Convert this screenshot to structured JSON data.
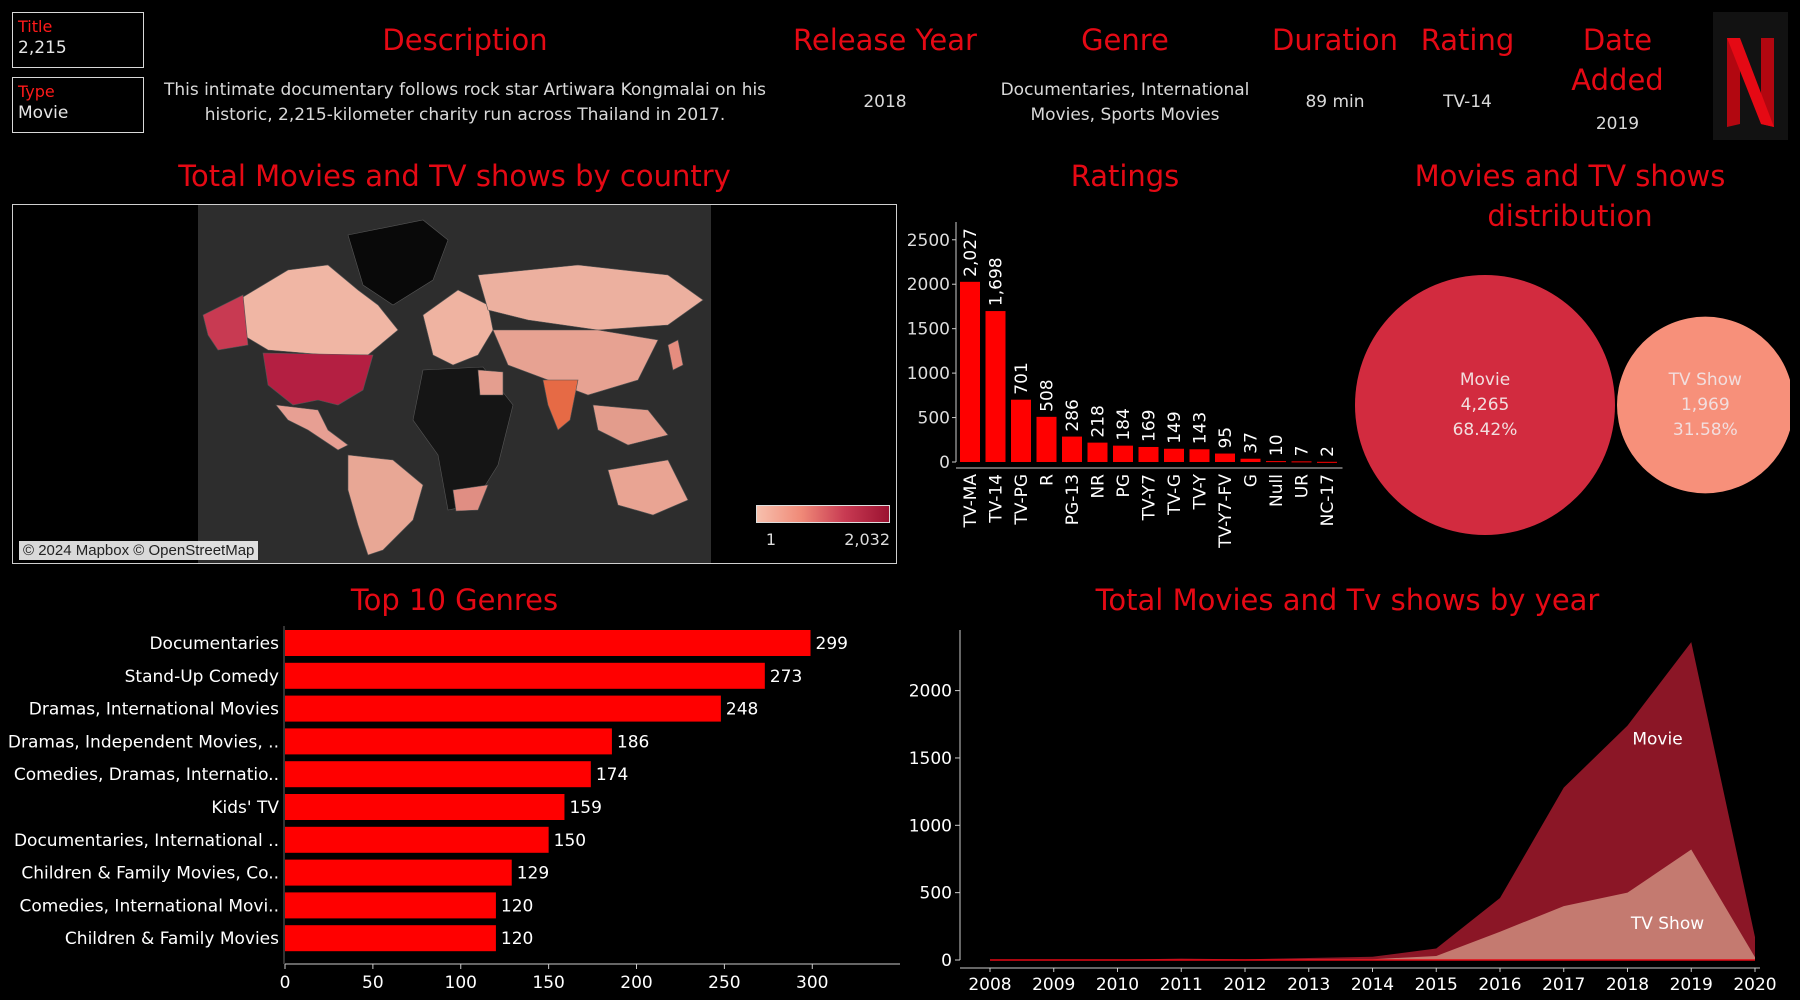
{
  "filters": {
    "title_label": "Title",
    "title_value": "2,215",
    "type_label": "Type",
    "type_value": "Movie"
  },
  "detail": {
    "description_header": "Description",
    "description": "This intimate documentary follows rock star Artiwara Kongmalai on his historic, 2,215-kilometer charity run across Thailand in 2017.",
    "release_year_header": "Release Year",
    "release_year": "2018",
    "genre_header": "Genre",
    "genre": "Documentaries, International Movies, Sports Movies",
    "duration_header": "Duration",
    "duration": "89 min",
    "rating_header": "Rating",
    "rating": "TV-14",
    "date_added_header": "Date Added",
    "date_added": "2019"
  },
  "logo": {
    "icon": "netflix-n-logo",
    "color": "#e50914"
  },
  "map": {
    "title": "Total Movies and TV shows by country",
    "attribution": "© 2024 Mapbox © OpenStreetMap",
    "legend_min": "1",
    "legend_max": "2,032",
    "color_low": "#f7c0ad",
    "color_high": "#9b1231"
  },
  "colors": {
    "accent": "#e50914",
    "bar": "#ff0000",
    "movie": "#d22b3f",
    "tvshow": "#f7907a",
    "area_movie": "#8b1626",
    "area_tv": "#c47a70"
  },
  "chart_data": [
    {
      "type": "bar",
      "title": "Ratings",
      "categories": [
        "TV-MA",
        "TV-14",
        "TV-PG",
        "R",
        "PG-13",
        "NR",
        "PG",
        "TV-Y7",
        "TV-G",
        "TV-Y",
        "TV-Y7-FV",
        "G",
        "Null",
        "UR",
        "NC-17"
      ],
      "values": [
        2027,
        1698,
        701,
        508,
        286,
        218,
        184,
        169,
        149,
        143,
        95,
        37,
        10,
        7,
        2
      ],
      "value_labels": [
        "2,027",
        "1,698",
        "701",
        "508",
        "286",
        "218",
        "184",
        "169",
        "149",
        "143",
        "95",
        "37",
        "10",
        "7",
        "2"
      ],
      "ylim": [
        0,
        2700
      ],
      "yticks": [
        0,
        500,
        1000,
        1500,
        2000,
        2500
      ]
    },
    {
      "type": "pie",
      "title": "Movies and TV shows distribution",
      "categories": [
        "Movie",
        "TV Show"
      ],
      "values": [
        4265,
        1969
      ],
      "value_labels": [
        "4,265",
        "1,969"
      ],
      "percent_labels": [
        "68.42%",
        "31.58%"
      ]
    },
    {
      "type": "bar",
      "title": "Top 10 Genres",
      "orientation": "horizontal",
      "categories": [
        "Documentaries",
        "Stand-Up Comedy",
        "Dramas, International Movies",
        "Dramas, Independent Movies, ..",
        "Comedies, Dramas, Internatio..",
        "Kids' TV",
        "Documentaries, International ..",
        "Children & Family Movies, Co..",
        "Comedies, International Movi..",
        "Children & Family Movies"
      ],
      "values": [
        299,
        273,
        248,
        186,
        174,
        159,
        150,
        129,
        120,
        120
      ],
      "xlim": [
        0,
        330
      ],
      "xticks": [
        0,
        50,
        100,
        150,
        200,
        250,
        300
      ]
    },
    {
      "type": "area",
      "title": "Total Movies and Tv shows by year",
      "x": [
        "2008",
        "2009",
        "2010",
        "2011",
        "2012",
        "2013",
        "2014",
        "2015",
        "2016",
        "2017",
        "2018",
        "2019",
        "2020"
      ],
      "series": [
        {
          "name": "Movie",
          "values": [
            2,
            2,
            3,
            10,
            5,
            9,
            18,
            55,
            250,
            880,
            1240,
            1540,
            150
          ]
        },
        {
          "name": "TV Show",
          "values": [
            1,
            0,
            0,
            0,
            0,
            6,
            6,
            30,
            210,
            400,
            500,
            820,
            20
          ]
        }
      ],
      "ylim": [
        0,
        2450
      ],
      "yticks": [
        0,
        500,
        1000,
        1500,
        2000
      ]
    }
  ]
}
